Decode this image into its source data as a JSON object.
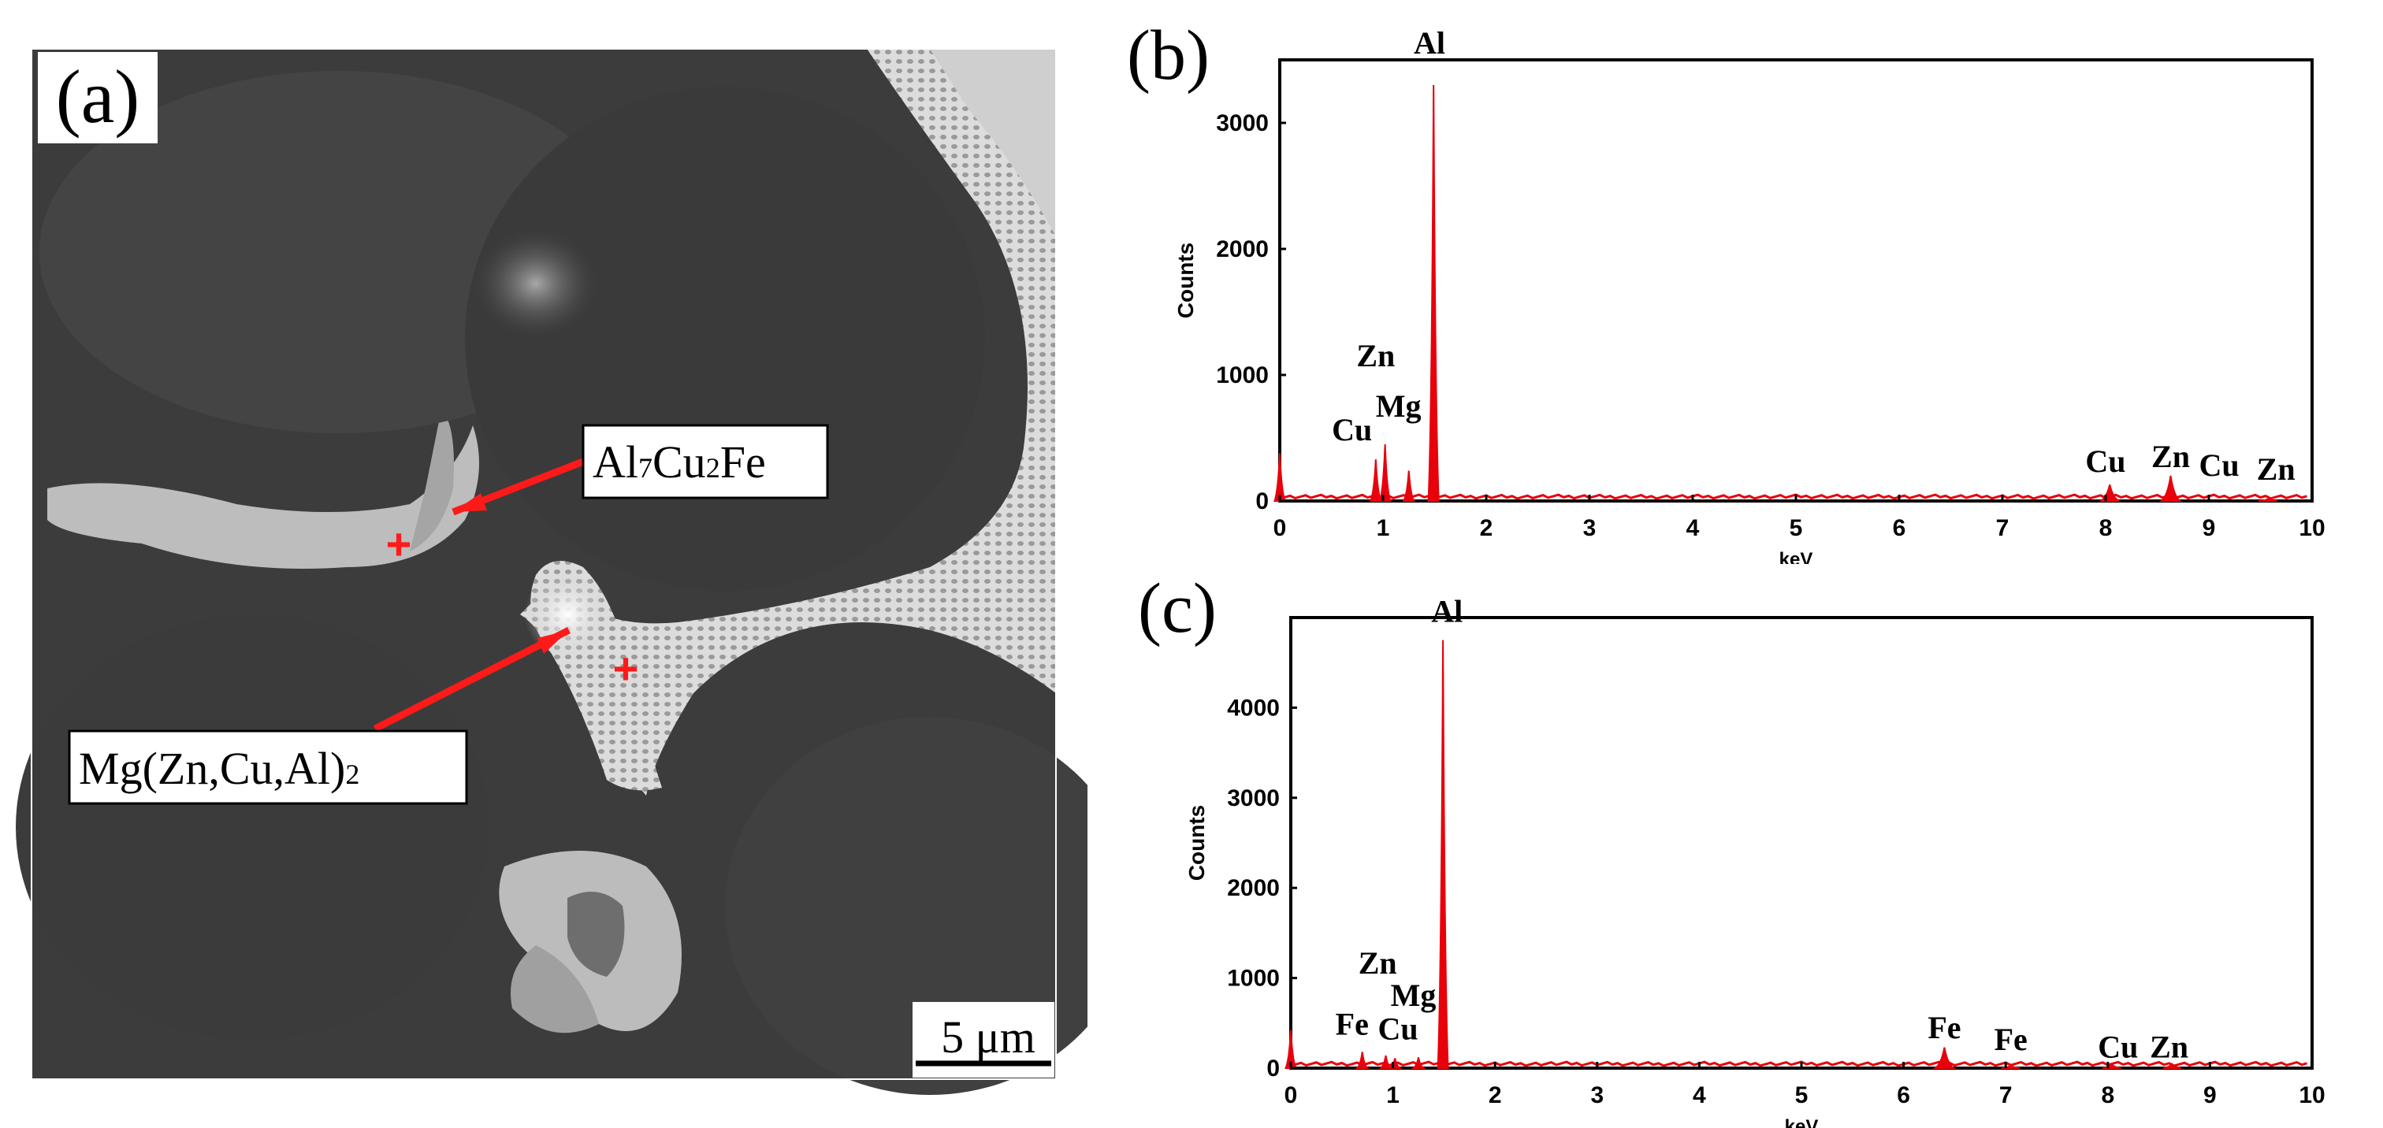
{
  "panels": {
    "a": {
      "label": "(a)",
      "annotations": [
        {
          "base": "Al",
          "sub1": "7",
          "mid": "Cu",
          "sub2": "2",
          "tail": "Fe"
        },
        {
          "text": "Mg(Zn,Cu,Al)",
          "sub": "2"
        }
      ],
      "scale_bar": "5 μm",
      "colors": {
        "marker": "#ff1a1a",
        "matrix": "#3e3e3e",
        "phase": "#d9d9d9"
      }
    },
    "b": {
      "label": "(b)"
    },
    "c": {
      "label": "(c)"
    }
  },
  "chart_data": [
    {
      "type": "area",
      "panel": "b",
      "xlabel": "keV",
      "ylabel": "Counts",
      "xlim": [
        0,
        10
      ],
      "ylim": [
        0,
        3500
      ],
      "xticks": [
        0,
        1,
        2,
        3,
        4,
        5,
        6,
        7,
        8,
        9,
        10
      ],
      "yticks": [
        0,
        1000,
        2000,
        3000
      ],
      "color": "#e8000b",
      "series": [
        {
          "values": [
            [
              0.0,
              380
            ],
            [
              0.93,
              330
            ],
            [
              1.02,
              450
            ],
            [
              1.25,
              240
            ],
            [
              1.49,
              3300
            ],
            [
              8.04,
              130
            ],
            [
              8.63,
              200
            ],
            [
              9.57,
              15
            ]
          ]
        }
      ],
      "peak_labels": [
        {
          "text": "Zn",
          "x": 0.93,
          "y": 1070
        },
        {
          "text": "Cu",
          "x": 0.7,
          "y": 480
        },
        {
          "text": "Mg",
          "x": 1.15,
          "y": 670
        },
        {
          "text": "Al",
          "x": 1.45,
          "y": 3550
        },
        {
          "text": "Cu",
          "x": 8.0,
          "y": 230
        },
        {
          "text": "Zn",
          "x": 8.63,
          "y": 270
        },
        {
          "text": "Cu",
          "x": 9.1,
          "y": 200
        },
        {
          "text": "Zn",
          "x": 9.65,
          "y": 170
        }
      ]
    },
    {
      "type": "area",
      "panel": "c",
      "xlabel": "keV",
      "ylabel": "Counts",
      "xlim": [
        0,
        10
      ],
      "ylim": [
        0,
        5000
      ],
      "xticks": [
        0,
        1,
        2,
        3,
        4,
        5,
        6,
        7,
        8,
        9,
        10
      ],
      "yticks": [
        0,
        1000,
        2000,
        3000,
        4000
      ],
      "color": "#e8000b",
      "series": [
        {
          "values": [
            [
              0.0,
              420
            ],
            [
              0.7,
              180
            ],
            [
              0.93,
              140
            ],
            [
              1.02,
              110
            ],
            [
              1.25,
              120
            ],
            [
              1.49,
              4750
            ],
            [
              6.4,
              230
            ],
            [
              7.05,
              30
            ],
            [
              8.04,
              40
            ],
            [
              8.63,
              45
            ]
          ]
        }
      ],
      "peak_labels": [
        {
          "text": "Zn",
          "x": 0.85,
          "y": 1050
        },
        {
          "text": "Fe",
          "x": 0.6,
          "y": 370
        },
        {
          "text": "Cu",
          "x": 1.05,
          "y": 320
        },
        {
          "text": "Mg",
          "x": 1.2,
          "y": 690
        },
        {
          "text": "Al",
          "x": 1.53,
          "y": 4950
        },
        {
          "text": "Fe",
          "x": 6.4,
          "y": 330
        },
        {
          "text": "Fe",
          "x": 7.05,
          "y": 200
        },
        {
          "text": "Cu",
          "x": 8.1,
          "y": 120
        },
        {
          "text": "Zn",
          "x": 8.6,
          "y": 120
        }
      ]
    }
  ]
}
